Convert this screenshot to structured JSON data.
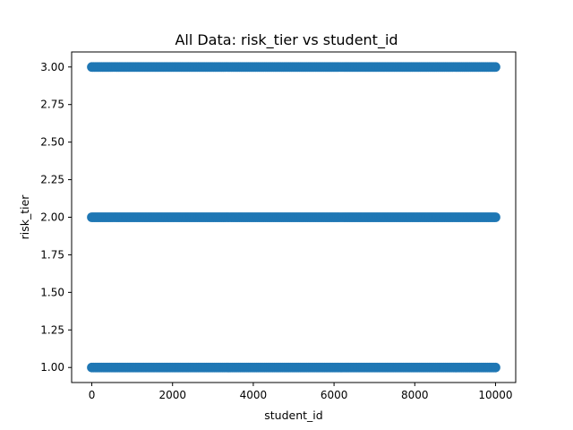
{
  "chart_data": {
    "type": "scatter",
    "title": "All Data: risk_tier vs student_id",
    "xlabel": "student_id",
    "ylabel": "risk_tier",
    "xlim": [
      -500,
      10500
    ],
    "ylim": [
      0.9,
      3.1
    ],
    "x_ticks": [
      0,
      2000,
      4000,
      6000,
      8000,
      10000
    ],
    "x_tick_labels": [
      "0",
      "2000",
      "4000",
      "6000",
      "8000",
      "10000"
    ],
    "y_ticks": [
      1.0,
      1.25,
      1.5,
      1.75,
      2.0,
      2.25,
      2.5,
      2.75,
      3.0
    ],
    "y_tick_labels": [
      "1.00",
      "1.25",
      "1.50",
      "1.75",
      "2.00",
      "2.25",
      "2.50",
      "2.75",
      "3.00"
    ],
    "grid": false,
    "legend": "none",
    "marker_color": "#1f77b4",
    "series": [
      {
        "x_range": [
          0,
          10000
        ],
        "y": 1.0
      },
      {
        "x_range": [
          0,
          10000
        ],
        "y": 2.0
      },
      {
        "x_range": [
          0,
          10000
        ],
        "y": 3.0
      }
    ]
  }
}
